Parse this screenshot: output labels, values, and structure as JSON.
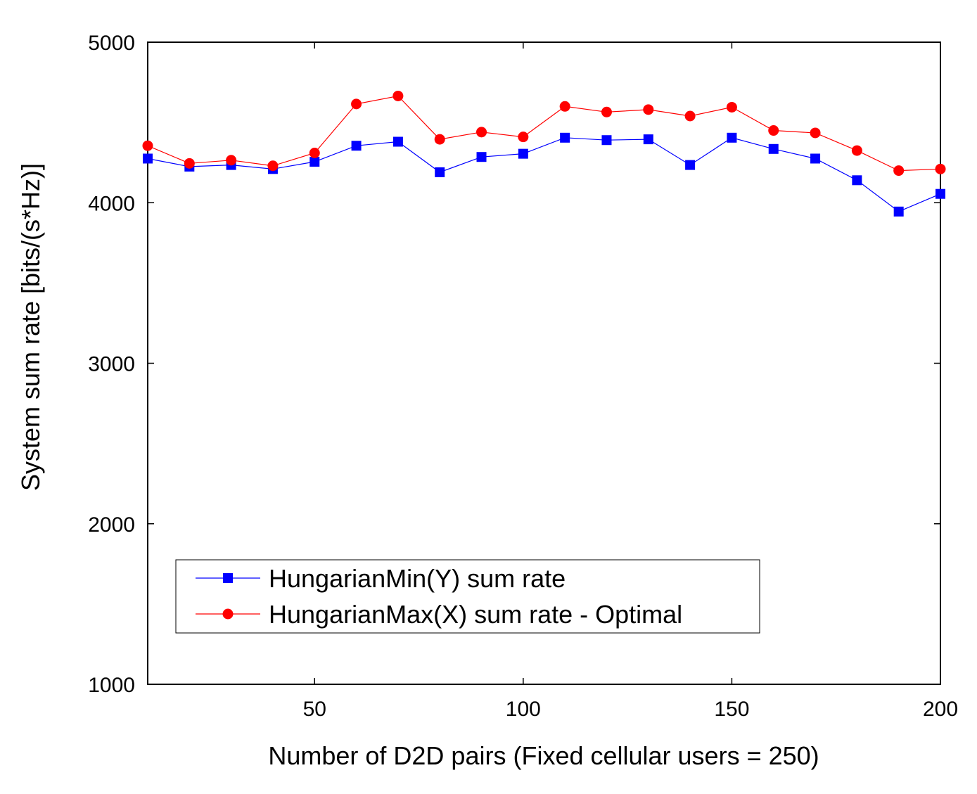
{
  "chart_data": {
    "type": "line",
    "title": "",
    "xlabel": "Number of D2D pairs (Fixed cellular users = 250)",
    "ylabel": "System sum rate [bits/(s*Hz)]",
    "xlim": [
      10,
      200
    ],
    "ylim": [
      1000,
      5000
    ],
    "xticks": [
      50,
      100,
      150,
      200
    ],
    "yticks": [
      1000,
      2000,
      3000,
      4000,
      5000
    ],
    "grid": false,
    "legend_position": "lower-left",
    "x": [
      10,
      20,
      30,
      40,
      50,
      60,
      70,
      80,
      90,
      100,
      110,
      120,
      130,
      140,
      150,
      160,
      170,
      180,
      190,
      200
    ],
    "series": [
      {
        "name": "HungarianMin(Y) sum rate",
        "color": "#0000ff",
        "marker": "square",
        "values": [
          4275,
          4225,
          4235,
          4210,
          4255,
          4355,
          4380,
          4190,
          4285,
          4305,
          4405,
          4390,
          4395,
          4235,
          4405,
          4335,
          4275,
          4140,
          3945,
          4055
        ]
      },
      {
        "name": "HungarianMax(X) sum rate - Optimal",
        "color": "#ff0000",
        "marker": "circle",
        "values": [
          4355,
          4245,
          4265,
          4230,
          4310,
          4615,
          4665,
          4395,
          4440,
          4410,
          4600,
          4565,
          4580,
          4540,
          4595,
          4450,
          4435,
          4325,
          4200,
          4210
        ]
      }
    ]
  }
}
